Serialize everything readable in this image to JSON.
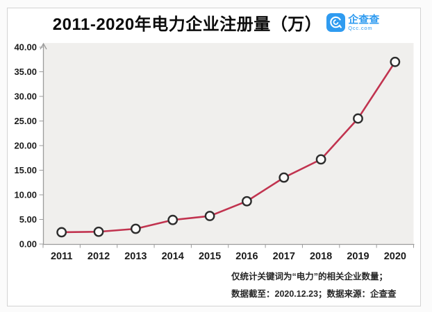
{
  "title": "2011-2020年电力企业注册量（万）",
  "logo": {
    "name": "企查查",
    "domain": "Qcc.com",
    "color": "#2f9bf0"
  },
  "footnote": {
    "line1": "仅统计关键词为“电力”的相关企业数量；",
    "line2": "数据截至：2020.12.23；数据来源：企查查"
  },
  "chart_data": {
    "type": "line",
    "title": "2011-2020年电力企业注册量（万）",
    "categories": [
      "2011",
      "2012",
      "2013",
      "2014",
      "2015",
      "2016",
      "2017",
      "2018",
      "2019",
      "2020"
    ],
    "values": [
      2.4,
      2.5,
      3.1,
      4.9,
      5.7,
      8.7,
      13.5,
      17.2,
      25.5,
      37.0
    ],
    "xlabel": "",
    "ylabel": "",
    "ylim": [
      0,
      40
    ],
    "y_tick_step": 5,
    "y_tick_labels": [
      "0.00",
      "5.00",
      "10.00",
      "15.00",
      "20.00",
      "25.00",
      "30.00",
      "35.00",
      "40.00"
    ],
    "grid": false,
    "legend": "none",
    "line_color": "#c1334f",
    "marker_fill": "#fbfbfa",
    "marker_stroke": "#2d2d2d",
    "plot_background": "#f0efed",
    "axis_color": "#9b9b9b",
    "tick_label_color": "#1b1b1b"
  }
}
